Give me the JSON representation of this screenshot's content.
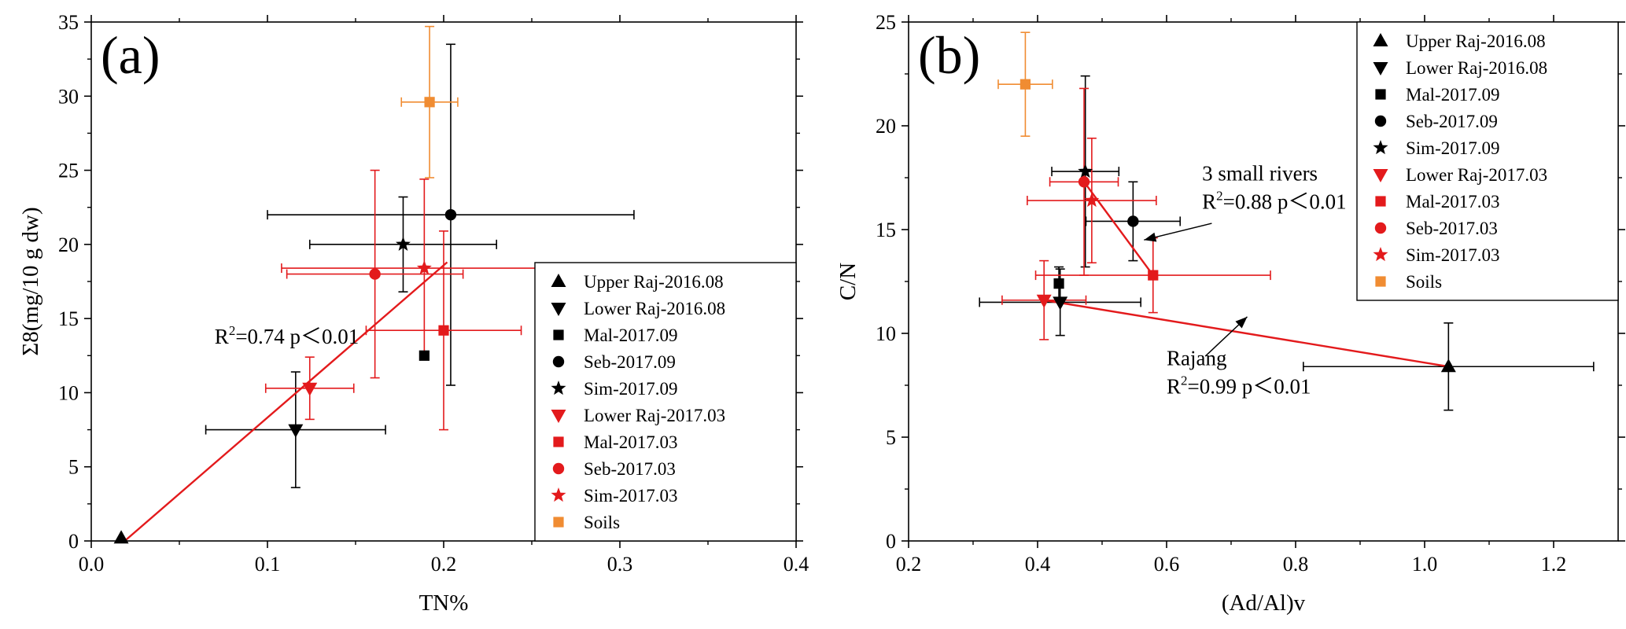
{
  "chart_data": [
    {
      "type": "scatter",
      "panel_label": "(a)",
      "xlabel": "TN%",
      "ylabel": "Σ8(mg/10 g dw)",
      "xlim": [
        0.0,
        0.4
      ],
      "ylim": [
        0,
        35
      ],
      "xticks": [
        0.0,
        0.1,
        0.2,
        0.3,
        0.4
      ],
      "xtick_labels": [
        "0.0",
        "0.1",
        "0.2",
        "0.3",
        "0.4"
      ],
      "yticks": [
        0,
        5,
        10,
        15,
        20,
        25,
        30,
        35
      ],
      "ytick_labels": [
        "0",
        "5",
        "10",
        "15",
        "20",
        "25",
        "30",
        "35"
      ],
      "legend_position": "lower-right",
      "series": [
        {
          "name": "Upper Raj-2016.08",
          "marker": "triangle-up",
          "color": "#000000",
          "x": 0.017,
          "y": 0.2,
          "xerr": 0.0,
          "yerr": 0.0
        },
        {
          "name": "Lower Raj-2016.08",
          "marker": "triangle-down",
          "color": "#000000",
          "x": 0.116,
          "y": 7.5,
          "xerr": 0.051,
          "yerr": 3.9
        },
        {
          "name": "Mal-2017.09",
          "marker": "square",
          "color": "#000000",
          "x": 0.189,
          "y": 12.5,
          "xerr": 0.0,
          "yerr": 0.0
        },
        {
          "name": "Seb-2017.09",
          "marker": "circle",
          "color": "#000000",
          "x": 0.204,
          "y": 22.0,
          "xerr": 0.104,
          "yerr": 11.5
        },
        {
          "name": "Sim-2017.09",
          "marker": "star",
          "color": "#000000",
          "x": 0.177,
          "y": 20.0,
          "xerr": 0.053,
          "yerr": 3.2
        },
        {
          "name": "Lower Raj-2017.03",
          "marker": "triangle-down",
          "color": "#e31a1c",
          "x": 0.124,
          "y": 10.3,
          "xerr": 0.025,
          "yerr": 2.1
        },
        {
          "name": "Mal-2017.03",
          "marker": "square",
          "color": "#e31a1c",
          "x": 0.2,
          "y": 14.2,
          "xerr": 0.044,
          "yerr": 6.7
        },
        {
          "name": "Seb-2017.03",
          "marker": "circle",
          "color": "#e31a1c",
          "x": 0.161,
          "y": 18.0,
          "xerr": 0.05,
          "yerr": 7.0
        },
        {
          "name": "Sim-2017.03",
          "marker": "star",
          "color": "#e31a1c",
          "x": 0.189,
          "y": 18.4,
          "xerr": 0.081,
          "yerr": 6.0
        },
        {
          "name": "Soils",
          "marker": "square",
          "color": "#f08c32",
          "x": 0.192,
          "y": 29.6,
          "xerr": 0.016,
          "yerr": 5.1
        }
      ],
      "fit_lines": [
        {
          "color": "#e31a1c",
          "x": [
            0.019,
            0.202
          ],
          "y": [
            0.0,
            18.8
          ]
        }
      ],
      "annotations": [
        {
          "r2_value": "0.74",
          "p_text": " p＜0.01",
          "x": 0.07,
          "y": 13.3
        }
      ]
    },
    {
      "type": "scatter",
      "panel_label": "(b)",
      "xlabel": "(Ad/Al)v",
      "ylabel": "C/N",
      "xlim": [
        0.2,
        1.3
      ],
      "ylim": [
        0,
        25
      ],
      "xticks": [
        0.2,
        0.4,
        0.6,
        0.8,
        1.0,
        1.2
      ],
      "xtick_labels": [
        "0.2",
        "0.4",
        "0.6",
        "0.8",
        "1.0",
        "1.2"
      ],
      "yticks": [
        0,
        5,
        10,
        15,
        20,
        25
      ],
      "ytick_labels": [
        "0",
        "5",
        "10",
        "15",
        "20",
        "25"
      ],
      "legend_position": "top-right",
      "series": [
        {
          "name": "Upper Raj-2016.08",
          "marker": "triangle-up",
          "color": "#000000",
          "x": 1.037,
          "y": 8.4,
          "xerr": 0.225,
          "yerr": 2.1
        },
        {
          "name": "Lower Raj-2016.08",
          "marker": "triangle-down",
          "color": "#000000",
          "x": 0.435,
          "y": 11.5,
          "xerr": 0.125,
          "yerr": 1.6
        },
        {
          "name": "Mal-2017.09",
          "marker": "square",
          "color": "#000000",
          "x": 0.433,
          "y": 12.4,
          "xerr": 0.0,
          "yerr": 0.8
        },
        {
          "name": "Seb-2017.09",
          "marker": "circle",
          "color": "#000000",
          "x": 0.548,
          "y": 15.4,
          "xerr": 0.073,
          "yerr": 1.9
        },
        {
          "name": "Sim-2017.09",
          "marker": "star",
          "color": "#000000",
          "x": 0.474,
          "y": 17.8,
          "xerr": 0.052,
          "yerr": 4.6
        },
        {
          "name": "Lower Raj-2017.03",
          "marker": "triangle-down",
          "color": "#e31a1c",
          "x": 0.41,
          "y": 11.6,
          "xerr": 0.065,
          "yerr": 1.9
        },
        {
          "name": "Mal-2017.03",
          "marker": "square",
          "color": "#e31a1c",
          "x": 0.579,
          "y": 12.8,
          "xerr": 0.182,
          "yerr": 1.8
        },
        {
          "name": "Seb-2017.03",
          "marker": "circle",
          "color": "#e31a1c",
          "x": 0.472,
          "y": 17.3,
          "xerr": 0.053,
          "yerr": 4.5
        },
        {
          "name": "Sim-2017.03",
          "marker": "star",
          "color": "#e31a1c",
          "x": 0.484,
          "y": 16.4,
          "xerr": 0.1,
          "yerr": 3.0
        },
        {
          "name": "Soils",
          "marker": "square",
          "color": "#f08c32",
          "x": 0.381,
          "y": 22.0,
          "xerr": 0.042,
          "yerr": 2.5
        }
      ],
      "fit_lines": [
        {
          "color": "#e31a1c",
          "x": [
            0.472,
            0.579
          ],
          "y": [
            17.3,
            12.8
          ]
        },
        {
          "color": "#e31a1c",
          "x": [
            0.41,
            1.037
          ],
          "y": [
            11.6,
            8.4
          ]
        }
      ],
      "annotations": [
        {
          "title": "3 small rivers",
          "r2_value": "0.88",
          "p_text": " p＜0.01",
          "x": 0.655,
          "y": 16.0,
          "title_dy": -36,
          "arrow_from": [
            0.67,
            15.3
          ],
          "arrow_to": [
            0.565,
            14.5
          ]
        },
        {
          "title": "Rajang",
          "r2_value": "0.99",
          "p_text": " p＜0.01",
          "x": 0.6,
          "y": 7.1,
          "title_dy": -36,
          "arrow_from": [
            0.66,
            8.9
          ],
          "arrow_to": [
            0.725,
            10.8
          ]
        }
      ]
    }
  ]
}
